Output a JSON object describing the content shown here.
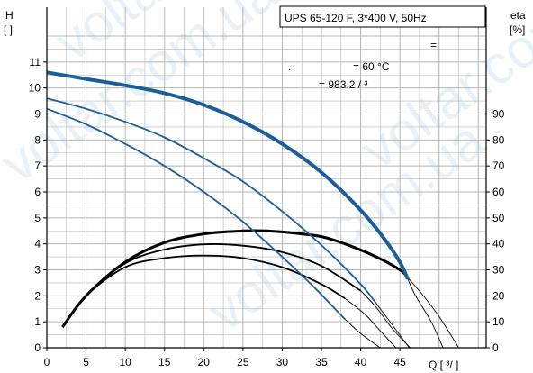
{
  "chart_data": {
    "type": "line",
    "title": "UPS 65-120 F, 3*400 V, 50Hz",
    "y_left": {
      "label_line1": "H",
      "label_line2": "[  ]",
      "ylim": [
        0,
        12
      ],
      "ticks": [
        0,
        1,
        2,
        3,
        4,
        5,
        6,
        7,
        8,
        9,
        10,
        11
      ]
    },
    "y_right": {
      "label_line1": "eta",
      "label_line2": "[%]",
      "ylim": [
        0,
        100
      ],
      "ticks": [
        0,
        10,
        20,
        30,
        40,
        50,
        60,
        70,
        80,
        90
      ]
    },
    "x": {
      "label": "Q [  ³/  ]",
      "xlim": [
        0,
        56
      ],
      "ticks": [
        0,
        5,
        10,
        15,
        20,
        25,
        30,
        35,
        40,
        45
      ]
    },
    "grid": true,
    "info_lines": [
      "=",
      ".",
      "= 60 °C",
      "= 983.2   /  ³"
    ],
    "watermark": "voltar.com.ua",
    "colors": {
      "head_curve": "#1b5e98",
      "eta_curve": "#000000",
      "axis": "#000000",
      "grid": "#b4b4b4"
    },
    "head_curves": [
      {
        "bold": true,
        "points": [
          [
            0,
            10.6
          ],
          [
            5,
            10.35
          ],
          [
            10,
            10.1
          ],
          [
            15,
            9.8
          ],
          [
            20,
            9.35
          ],
          [
            25,
            8.7
          ],
          [
            30,
            7.85
          ],
          [
            35,
            6.75
          ],
          [
            40,
            5.3
          ],
          [
            43,
            4.2
          ],
          [
            45,
            3.3
          ],
          [
            46,
            2.65
          ]
        ]
      },
      {
        "bold": false,
        "points": [
          [
            0,
            9.6
          ],
          [
            5,
            9.2
          ],
          [
            10,
            8.7
          ],
          [
            15,
            8.1
          ],
          [
            20,
            7.3
          ],
          [
            25,
            6.4
          ],
          [
            30,
            5.25
          ],
          [
            35,
            3.95
          ],
          [
            40,
            2.45
          ],
          [
            42,
            1.7
          ]
        ]
      },
      {
        "bold": false,
        "points": [
          [
            0,
            9.2
          ],
          [
            5,
            8.6
          ],
          [
            10,
            7.85
          ],
          [
            15,
            7.0
          ],
          [
            20,
            6.0
          ],
          [
            25,
            4.85
          ],
          [
            30,
            3.5
          ],
          [
            34,
            2.35
          ],
          [
            38,
            1.1
          ]
        ]
      }
    ],
    "eta_curves": [
      {
        "bold": true,
        "points": [
          [
            2,
            8
          ],
          [
            5,
            20
          ],
          [
            10,
            33
          ],
          [
            15,
            40.5
          ],
          [
            20,
            43.8
          ],
          [
            25,
            45
          ],
          [
            28,
            45
          ],
          [
            32,
            44
          ],
          [
            35,
            42.8
          ],
          [
            38,
            40
          ],
          [
            42,
            35
          ],
          [
            45,
            30
          ],
          [
            46,
            27
          ]
        ]
      },
      {
        "bold": false,
        "points": [
          [
            2,
            8
          ],
          [
            5,
            20
          ],
          [
            10,
            32.5
          ],
          [
            15,
            37.8
          ],
          [
            20,
            39.8
          ],
          [
            25,
            39.3
          ],
          [
            30,
            36.8
          ],
          [
            35,
            31.5
          ],
          [
            40,
            22
          ]
        ]
      },
      {
        "bold": false,
        "points": [
          [
            2,
            8
          ],
          [
            5,
            20
          ],
          [
            10,
            31
          ],
          [
            15,
            34.5
          ],
          [
            20,
            35.5
          ],
          [
            25,
            34.5
          ],
          [
            30,
            31
          ],
          [
            35,
            24.5
          ],
          [
            38,
            19
          ]
        ]
      }
    ],
    "eta_tails": [
      {
        "points": [
          [
            46,
            27
          ],
          [
            48,
            20
          ],
          [
            50,
            12
          ],
          [
            52.5,
            0
          ]
        ]
      },
      {
        "points": [
          [
            40,
            22
          ],
          [
            42,
            15.5
          ],
          [
            44,
            7.5
          ],
          [
            46.3,
            0
          ]
        ]
      },
      {
        "points": [
          [
            38,
            19
          ],
          [
            40.5,
            13
          ],
          [
            42.5,
            6.5
          ],
          [
            44.5,
            0
          ]
        ]
      }
    ],
    "head_tails": [
      {
        "points": [
          [
            46,
            2.65
          ],
          [
            47,
            2.0
          ],
          [
            49,
            1.0
          ],
          [
            50.5,
            0
          ]
        ]
      },
      {
        "points": [
          [
            42,
            1.7
          ],
          [
            44,
            0.9
          ],
          [
            46.2,
            0
          ]
        ]
      },
      {
        "points": [
          [
            38,
            1.1
          ],
          [
            40,
            0.55
          ],
          [
            42.5,
            0
          ]
        ]
      }
    ]
  }
}
